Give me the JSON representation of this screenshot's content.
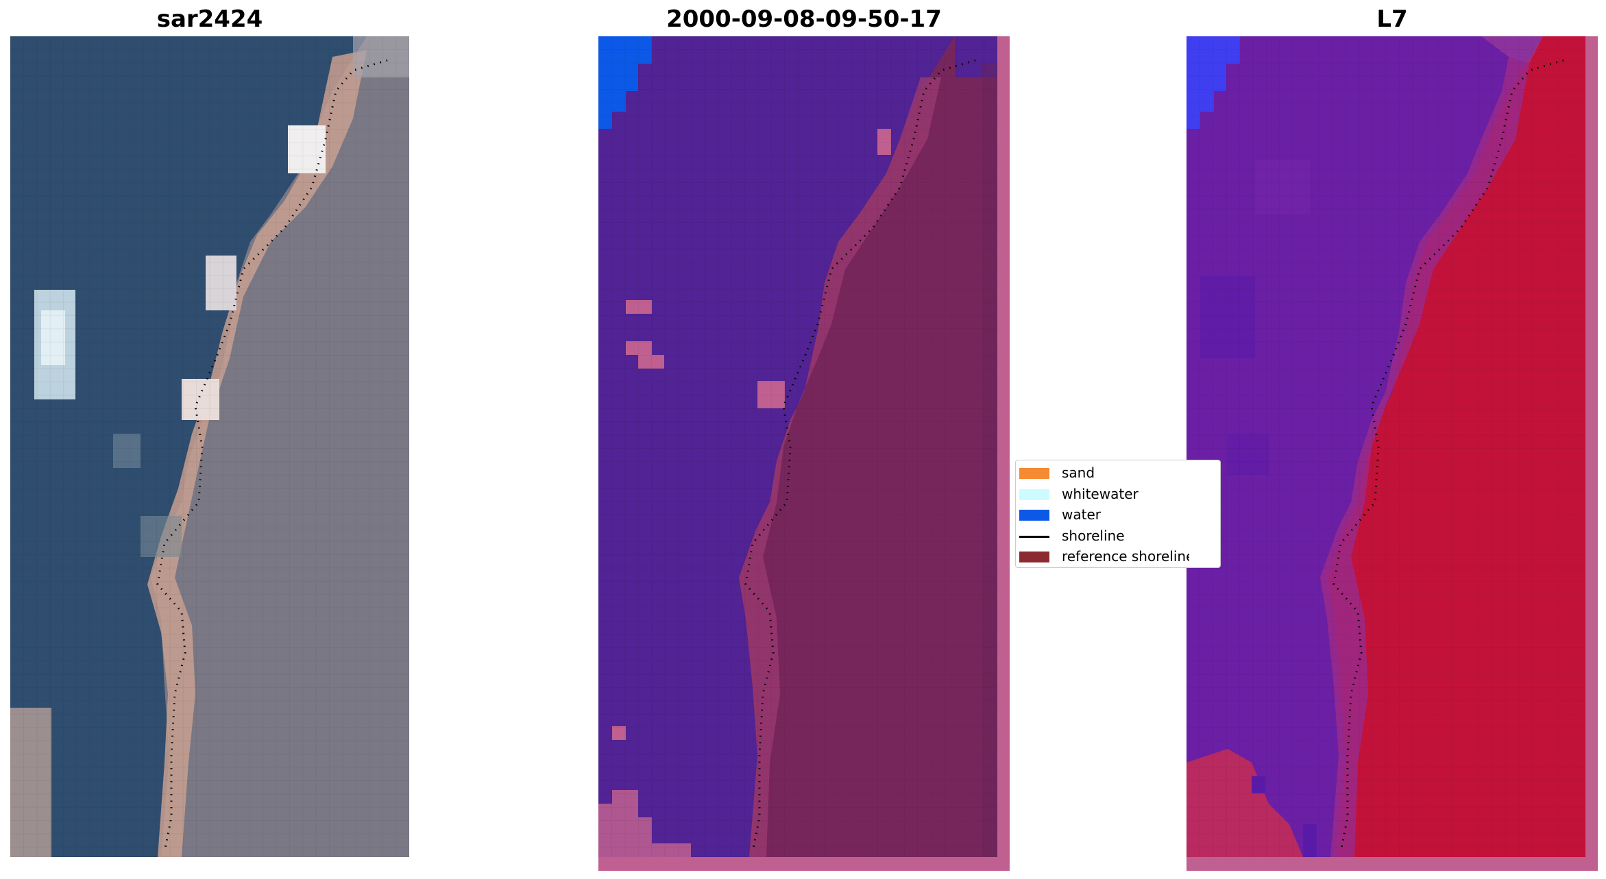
{
  "panels": [
    {
      "title": "sar2424"
    },
    {
      "title": "2000-09-08-09-50-17"
    },
    {
      "title": "L7"
    }
  ],
  "legend": [
    {
      "label": "sand",
      "color": "#f58a33",
      "kind": "patch"
    },
    {
      "label": "whitewater",
      "color": "#ccfcff",
      "kind": "patch"
    },
    {
      "label": "water",
      "color": "#0c59e8",
      "kind": "patch"
    },
    {
      "label": "shoreline",
      "color": "#000000",
      "kind": "line"
    },
    {
      "label": "reference shoreline",
      "color": "#8c2a31",
      "kind": "patch"
    }
  ],
  "colors": {
    "rgb_water": "#2f4d6e",
    "rgb_land": "#7a7884",
    "rgb_sand": "#c8a090",
    "class_water_area": "#512394",
    "class_land_overlay": "#77265c",
    "class_border": "#c06090",
    "class_water_patch": "#0c59e8",
    "mndwi_water": "#6a1fa5",
    "mndwi_land": "#c2123a",
    "mndwi_water_patch": "#3f3ef0"
  }
}
